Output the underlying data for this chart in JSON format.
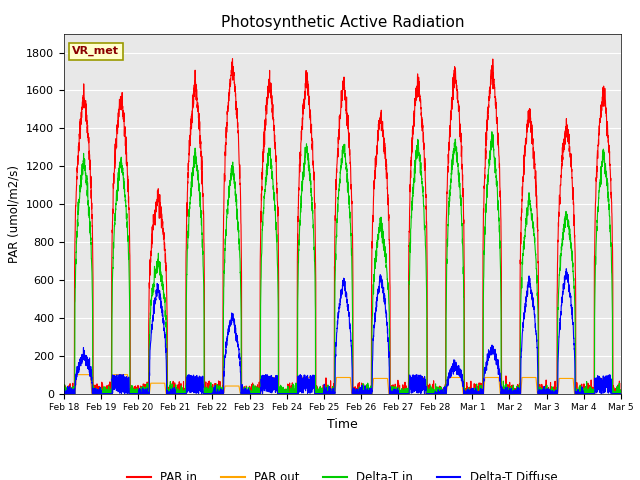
{
  "title": "Photosynthetic Active Radiation",
  "ylabel": "PAR (umol/m2/s)",
  "xlabel": "Time",
  "label_text": "VR_met",
  "ylim": [
    0,
    1900
  ],
  "xlim": [
    0,
    15
  ],
  "background_color": "#e8e8e8",
  "colors": {
    "PAR in": "#ff0000",
    "PAR out": "#ffa500",
    "Delta-T in": "#00cc00",
    "Delta-T Diffuse": "#0000ff"
  },
  "x_tick_labels": [
    "Feb 18",
    "Feb 19",
    "Feb 20",
    "Feb 21",
    "Feb 22",
    "Feb 23",
    "Feb 24",
    "Feb 25",
    "Feb 26",
    "Feb 27",
    "Feb 28",
    "Mar 1",
    "Mar 2",
    "Mar 3",
    "Mar 4",
    "Mar 5"
  ],
  "yticks": [
    0,
    200,
    400,
    600,
    800,
    1000,
    1200,
    1400,
    1600,
    1800
  ],
  "day_peaks": {
    "PAR_in": [
      1580,
      1580,
      1050,
      1630,
      1750,
      1650,
      1660,
      1650,
      1480,
      1670,
      1700,
      1720,
      1490,
      1420,
      1610
    ],
    "PAR_out": [
      100,
      100,
      55,
      85,
      40,
      85,
      85,
      85,
      80,
      85,
      85,
      85,
      85,
      80,
      80
    ],
    "DeltaT_in": [
      1240,
      1240,
      700,
      1270,
      1200,
      1290,
      1310,
      1320,
      900,
      1320,
      1340,
      1350,
      1030,
      950,
      1280
    ],
    "DeltaT_diff": [
      200,
      100,
      570,
      100,
      410,
      100,
      100,
      600,
      620,
      100,
      150,
      240,
      600,
      650,
      100
    ]
  },
  "n_per_day": 288,
  "n_days": 15
}
